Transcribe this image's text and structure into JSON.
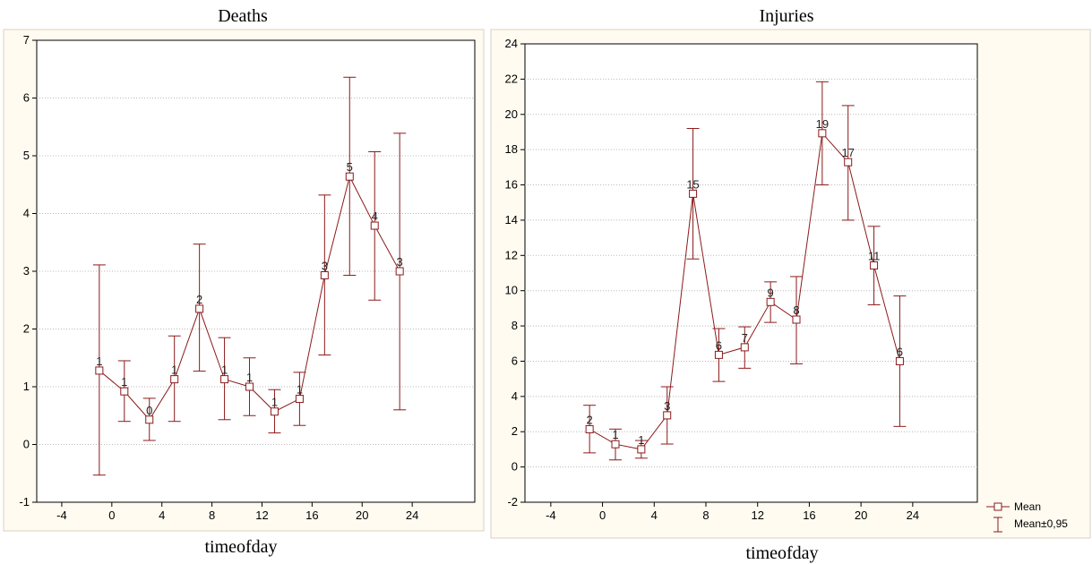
{
  "colors": {
    "series": "#8b1a1a",
    "panel_bg": "#fffbf0",
    "plot_bg": "#ffffff",
    "grid": "#b8b8b8"
  },
  "legend": {
    "mean": "Mean",
    "ci": "Mean±0,95"
  },
  "chart_data": [
    {
      "type": "line",
      "title": "Deaths",
      "xlabel": "timeofday",
      "ylabel": "",
      "xlim": [
        -6,
        29
      ],
      "ylim": [
        -1,
        7
      ],
      "xticks": [
        -4,
        0,
        4,
        8,
        12,
        16,
        20,
        24
      ],
      "yticks": [
        -1,
        0,
        1,
        2,
        3,
        4,
        5,
        6,
        7
      ],
      "grid": "horizontal dotted",
      "series": [
        {
          "x": [
            -1,
            1,
            3,
            5,
            7,
            9,
            11,
            13,
            15,
            17,
            19,
            21,
            23
          ],
          "mean": [
            1.28,
            0.92,
            0.43,
            1.13,
            2.35,
            1.13,
            1.0,
            0.57,
            0.79,
            2.93,
            4.64,
            3.79,
            3.0
          ],
          "lower": [
            -0.53,
            0.4,
            0.07,
            0.4,
            1.27,
            0.43,
            0.5,
            0.2,
            0.33,
            1.55,
            2.93,
            2.5,
            0.6
          ],
          "upper": [
            3.11,
            1.45,
            0.8,
            1.88,
            3.47,
            1.85,
            1.5,
            0.95,
            1.25,
            4.32,
            6.36,
            5.07,
            5.39
          ],
          "labels": [
            "1",
            "1",
            "0",
            "1",
            "2",
            "1",
            "1",
            "1",
            "1",
            "3",
            "5",
            "4",
            "3"
          ]
        }
      ]
    },
    {
      "type": "line",
      "title": "Injuries",
      "xlabel": "timeofday",
      "ylabel": "",
      "xlim": [
        -6,
        29
      ],
      "ylim": [
        -2,
        24
      ],
      "xticks": [
        -4,
        0,
        4,
        8,
        12,
        16,
        20,
        24
      ],
      "yticks": [
        -2,
        0,
        2,
        4,
        6,
        8,
        10,
        12,
        14,
        16,
        18,
        20,
        22,
        24
      ],
      "grid": "horizontal dotted",
      "legend_position": "outside-bottom-right",
      "series": [
        {
          "x": [
            -1,
            1,
            3,
            5,
            7,
            9,
            11,
            13,
            15,
            17,
            19,
            21,
            23
          ],
          "mean": [
            2.14,
            1.29,
            1.0,
            2.93,
            15.5,
            6.36,
            6.79,
            9.36,
            8.36,
            18.93,
            17.29,
            11.43,
            6.0
          ],
          "lower": [
            0.8,
            0.4,
            0.5,
            1.3,
            11.8,
            4.85,
            5.6,
            8.2,
            5.85,
            16.0,
            14.0,
            9.2,
            2.3
          ],
          "upper": [
            3.5,
            2.15,
            1.5,
            4.55,
            19.2,
            7.85,
            7.95,
            10.5,
            10.8,
            21.85,
            20.5,
            13.65,
            9.7
          ],
          "labels": [
            "2",
            "1",
            "1",
            "3",
            "15",
            "6",
            "7",
            "9",
            "8",
            "19",
            "17",
            "11",
            "6"
          ]
        }
      ]
    }
  ]
}
